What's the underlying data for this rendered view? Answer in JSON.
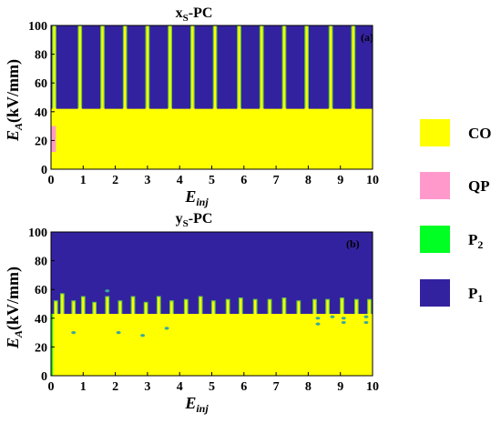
{
  "chart_data": [
    {
      "type": "heatmap",
      "title": "x_S-PC",
      "title_main": "x",
      "title_sub": "S",
      "title_suffix": "-PC",
      "panel_label": "(a)",
      "xlabel_main": "E",
      "xlabel_sub": "inj",
      "ylabel_main": "E",
      "ylabel_sub": "A",
      "ylabel_suffix": "(kV/mm)",
      "xlim": [
        0,
        10
      ],
      "ylim": [
        0,
        100
      ],
      "xticks": [
        "0",
        "1",
        "2",
        "3",
        "4",
        "5",
        "6",
        "7",
        "8",
        "9",
        "10"
      ],
      "yticks": [
        "0",
        "20",
        "40",
        "60",
        "80",
        "100"
      ],
      "background_state": "P1",
      "regions": [
        {
          "state": "CO",
          "x": [
            0,
            10
          ],
          "y": [
            0,
            42
          ]
        },
        {
          "state": "QP",
          "x": [
            0,
            0.15
          ],
          "y": [
            12,
            30
          ]
        }
      ],
      "stripes_x": [
        0.1,
        0.9,
        1.6,
        2.3,
        3.0,
        3.7,
        4.4,
        5.1,
        5.85,
        6.55,
        7.25,
        7.95,
        8.7,
        9.4
      ],
      "stripe_ylim": [
        42,
        100
      ],
      "stripe_width": 0.1
    },
    {
      "type": "heatmap",
      "title": "y_S-PC",
      "title_main": "y",
      "title_sub": "S",
      "title_suffix": "-PC",
      "panel_label": "(b)",
      "xlabel_main": "E",
      "xlabel_sub": "inj",
      "ylabel_main": "E",
      "ylabel_sub": "A",
      "ylabel_suffix": "(kV/mm)",
      "xlim": [
        0,
        10
      ],
      "ylim": [
        0,
        100
      ],
      "xticks": [
        "0",
        "1",
        "2",
        "3",
        "4",
        "5",
        "6",
        "7",
        "8",
        "9",
        "10"
      ],
      "yticks": [
        "0",
        "20",
        "40",
        "60",
        "80",
        "100"
      ],
      "background_state": "P1",
      "regions": [
        {
          "state": "CO",
          "x": [
            0,
            10
          ],
          "y": [
            0,
            43
          ]
        }
      ],
      "spikes": [
        {
          "x": 0.15,
          "top": 52
        },
        {
          "x": 0.35,
          "top": 57
        },
        {
          "x": 0.7,
          "top": 52
        },
        {
          "x": 1.0,
          "top": 55
        },
        {
          "x": 1.35,
          "top": 51
        },
        {
          "x": 1.75,
          "top": 55
        },
        {
          "x": 2.15,
          "top": 52
        },
        {
          "x": 2.55,
          "top": 55
        },
        {
          "x": 2.95,
          "top": 51
        },
        {
          "x": 3.35,
          "top": 55
        },
        {
          "x": 3.75,
          "top": 52
        },
        {
          "x": 4.2,
          "top": 53
        },
        {
          "x": 4.65,
          "top": 55
        },
        {
          "x": 5.05,
          "top": 52
        },
        {
          "x": 5.5,
          "top": 53
        },
        {
          "x": 5.9,
          "top": 54
        },
        {
          "x": 6.35,
          "top": 53
        },
        {
          "x": 6.8,
          "top": 53
        },
        {
          "x": 7.25,
          "top": 54
        },
        {
          "x": 7.7,
          "top": 52
        },
        {
          "x": 8.2,
          "top": 53
        },
        {
          "x": 8.6,
          "top": 53
        },
        {
          "x": 9.05,
          "top": 54
        },
        {
          "x": 9.5,
          "top": 53
        },
        {
          "x": 9.9,
          "top": 53
        }
      ],
      "spike_width": 0.1,
      "dots": [
        {
          "x": 0.7,
          "y": 30
        },
        {
          "x": 1.75,
          "y": 59
        },
        {
          "x": 2.1,
          "y": 30
        },
        {
          "x": 2.85,
          "y": 28
        },
        {
          "x": 3.6,
          "y": 33
        },
        {
          "x": 8.3,
          "y": 40
        },
        {
          "x": 8.3,
          "y": 36
        },
        {
          "x": 8.75,
          "y": 41
        },
        {
          "x": 9.1,
          "y": 37
        },
        {
          "x": 9.1,
          "y": 40
        },
        {
          "x": 9.8,
          "y": 37
        },
        {
          "x": 9.8,
          "y": 41
        }
      ],
      "left_edge_band": {
        "x": [
          0,
          0.04
        ],
        "y": [
          0,
          43
        ]
      }
    }
  ],
  "legend": [
    {
      "state": "CO",
      "label_main": "CO",
      "label_sub": ""
    },
    {
      "state": "QP",
      "label_main": "QP",
      "label_sub": ""
    },
    {
      "state": "P2",
      "label_main": "P",
      "label_sub": "2"
    },
    {
      "state": "P1",
      "label_main": "P",
      "label_sub": "1"
    }
  ],
  "colors": {
    "CO": "#ffff00",
    "QP": "#ff99cc",
    "P2": "#00ff22",
    "P1": "#3322a0",
    "stripe_edge": "#66cc44",
    "dot": "#3aa8a0"
  }
}
